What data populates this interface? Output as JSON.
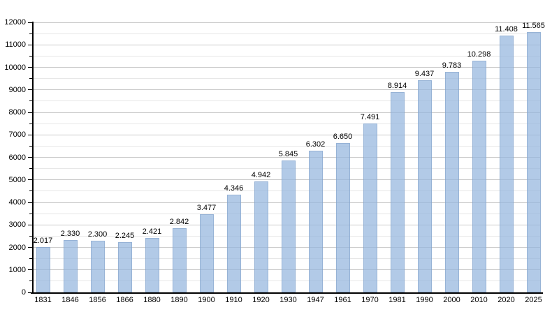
{
  "chart_data": {
    "type": "bar",
    "categories": [
      "1831",
      "1846",
      "1856",
      "1866",
      "1880",
      "1890",
      "1900",
      "1910",
      "1920",
      "1930",
      "1947",
      "1961",
      "1970",
      "1981",
      "1990",
      "2000",
      "2010",
      "2020",
      "2025"
    ],
    "values": [
      2017,
      2330,
      2300,
      2245,
      2421,
      2842,
      3477,
      4346,
      4942,
      5845,
      6302,
      6650,
      7491,
      8914,
      9437,
      9783,
      10298,
      11408,
      11565
    ],
    "bar_labels": [
      "2.017",
      "2.330",
      "2.300",
      "2.245",
      "2.421",
      "2.842",
      "3.477",
      "4.346",
      "4.942",
      "5.845",
      "6.302",
      "6.650",
      "7.491",
      "8.914",
      "9.437",
      "9.783",
      "10.298",
      "11.408",
      "11.565"
    ],
    "xlabel": "",
    "ylabel": "",
    "ylim": [
      0,
      12000
    ],
    "y_major_step": 1000,
    "y_minor_step": 500,
    "y_tick_labels": [
      "0",
      "1000",
      "2000",
      "3000",
      "4000",
      "5000",
      "6000",
      "7000",
      "8000",
      "9000",
      "10000",
      "11000",
      "12000"
    ],
    "grid": true,
    "legend": false,
    "colors": {
      "bar_fill": "#b4cce7",
      "bar_border": "#9bb6d6",
      "grid_major": "#c9c9c9",
      "grid_minor": "#e7e7e7",
      "axis": "#000000",
      "text": "#000000",
      "background": "#ffffff"
    }
  }
}
